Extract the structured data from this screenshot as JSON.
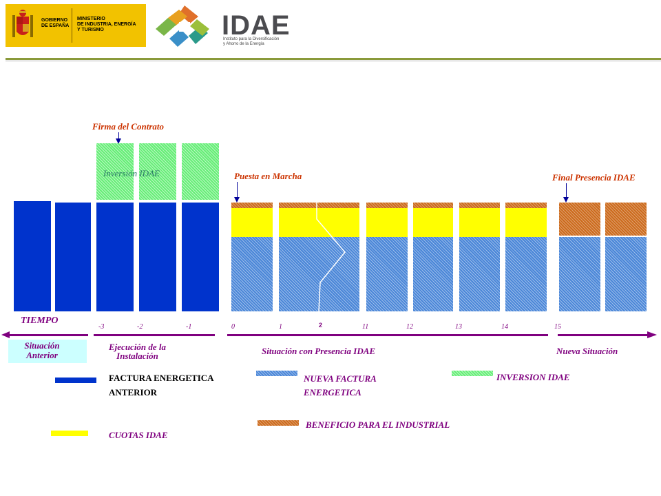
{
  "header": {
    "gov_name": "GOBIERNO\nDE ESPAÑA",
    "ministry": "MINISTERIO\nDE INDUSTRIA, ENERGÍA\nY TURISMO",
    "brand": "IDAE",
    "brand_sub": "Instituto para la Diversificación\ny Ahorro de la Energía"
  },
  "annotations": {
    "firma": "Firma del Contrato",
    "inversion": "Inversión IDAE",
    "puesta": "Puesta en Marcha",
    "final": "Final Presencia IDAE"
  },
  "timeline": {
    "tiempo": "TIEMPO",
    "ticks": [
      "-3",
      "-2",
      "-1",
      "0",
      "1",
      "2",
      "11",
      "12",
      "13",
      "14",
      "15"
    ],
    "phases": {
      "anterior": "Situación\nAnterior",
      "ejecucion": "Ejecución de la\nInstalación",
      "presencia": "Situación con Presencia IDAE",
      "nueva": "Nueva Situación"
    }
  },
  "legend": {
    "factura_anterior": "FACTURA ENERGETICA\nANTERIOR",
    "nueva_factura": "NUEVA FACTURA\nENERGETICA",
    "inversion": "INVERSION IDAE",
    "cuotas": "CUOTAS IDAE",
    "beneficio": "BENEFICIO PARA EL INDUSTRIAL"
  },
  "colors": {
    "factura_anterior": "#0033cc",
    "nueva_factura": "#4a86d8",
    "inversion": "#66ee77",
    "cuotas": "#ffff00",
    "beneficio": "#cc6a1c",
    "annotation": "#cc3300",
    "timeline": "#7f007f"
  }
}
